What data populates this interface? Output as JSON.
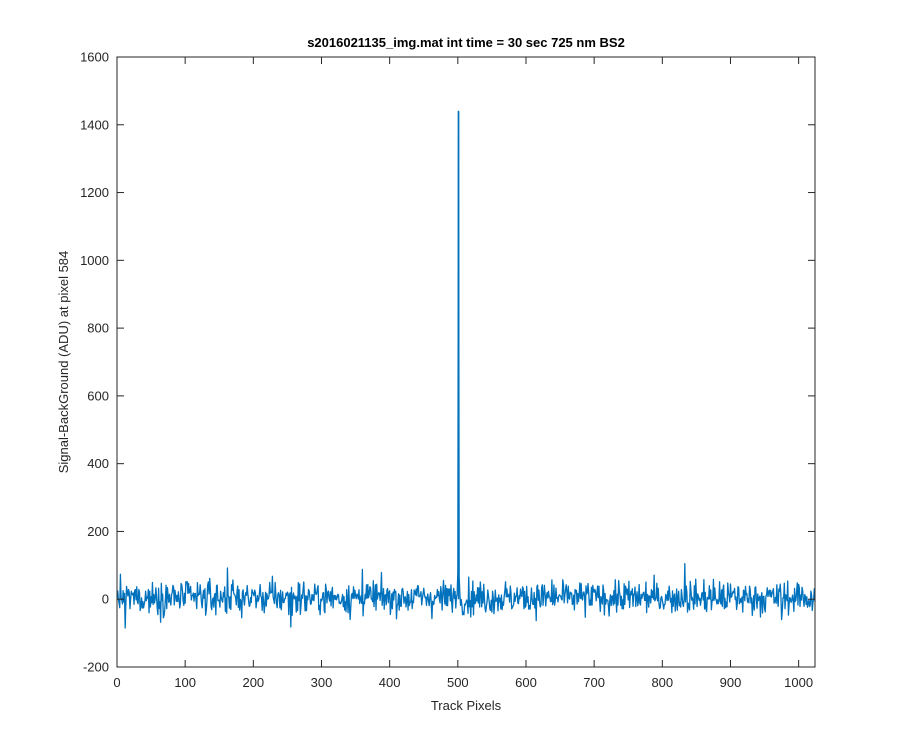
{
  "chart_data": {
    "type": "line",
    "title": "s2016021135_img.mat int time = 30 sec  725 nm BS2",
    "xlabel": "Track Pixels",
    "ylabel": "Signal-BackGround (ADU) at pixel 584",
    "xlim": [
      0,
      1024
    ],
    "ylim": [
      -200,
      1600
    ],
    "xticks": [
      0,
      100,
      200,
      300,
      400,
      500,
      600,
      700,
      800,
      900,
      1000
    ],
    "yticks": [
      -200,
      0,
      200,
      400,
      600,
      800,
      1000,
      1200,
      1400,
      1600
    ],
    "grid": false,
    "line_color": "#0072BD",
    "series": [
      {
        "n_points": 1024,
        "baseline_mean": 5,
        "noise_range": [
          -85,
          105
        ],
        "peak": {
          "x": 501,
          "y": 1440
        },
        "secondary_points": [
          {
            "x": 500,
            "y": 80
          },
          {
            "x": 502,
            "y": 65
          },
          {
            "x": 12,
            "y": -85
          },
          {
            "x": 162,
            "y": 92
          },
          {
            "x": 255,
            "y": -82
          },
          {
            "x": 360,
            "y": 88
          },
          {
            "x": 833,
            "y": 105
          },
          {
            "x": 975,
            "y": -60
          }
        ]
      }
    ]
  }
}
